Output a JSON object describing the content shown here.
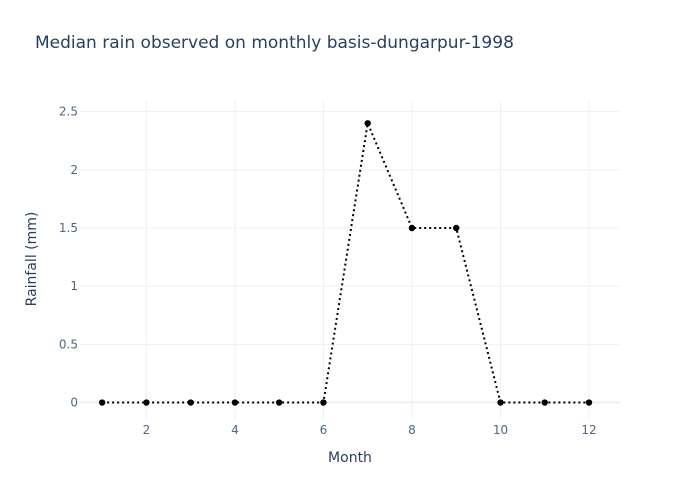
{
  "chart_data": {
    "type": "line",
    "title": "Median rain observed on monthly basis-dungarpur-1998",
    "xlabel": "Month",
    "ylabel": "Rainfall (mm)",
    "x": [
      1,
      2,
      3,
      4,
      5,
      6,
      7,
      8,
      9,
      10,
      11,
      12
    ],
    "y": [
      0,
      0,
      0,
      0,
      0,
      0,
      2.4,
      1.5,
      1.5,
      0,
      0,
      0
    ],
    "xlim": [
      0.5,
      12.7
    ],
    "ylim": [
      -0.15,
      2.6
    ],
    "xticks": [
      2,
      4,
      6,
      8,
      10,
      12
    ],
    "yticks": [
      0,
      0.5,
      1,
      1.5,
      2,
      2.5
    ],
    "ytick_labels": [
      "0",
      "0.5",
      "1",
      "1.5",
      "2",
      "2.5"
    ],
    "grid": true,
    "line_style": "dotted",
    "marker": "circle",
    "color": "#000000",
    "grid_color": "#ebf0f8",
    "zero_line_color": "#ebf0f8",
    "text_color": "#2a3f5f",
    "tick_color": "#506784"
  }
}
